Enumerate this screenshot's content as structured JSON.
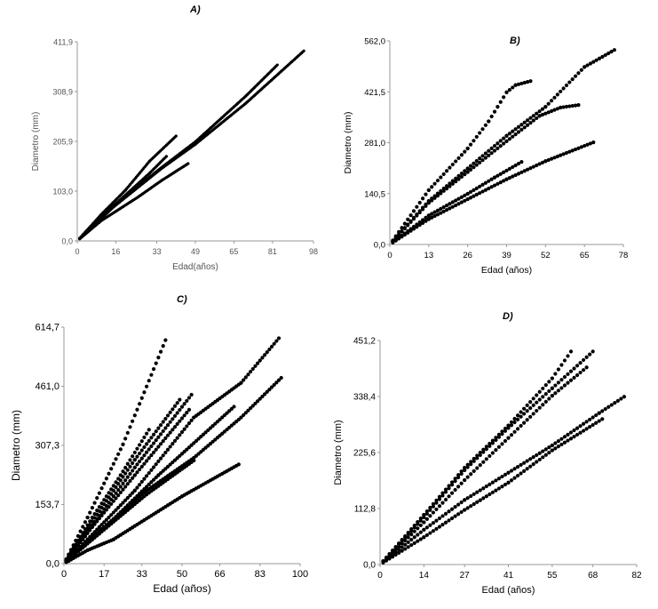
{
  "chart_data": [
    {
      "type": "scatter",
      "title": "A)",
      "xlabel": "Edad(años)",
      "ylabel": "Diametro (mm)",
      "xlim": [
        0,
        98
      ],
      "ylim": [
        0,
        411.9
      ],
      "xticks": [
        "0",
        "16",
        "33",
        "49",
        "65",
        "81",
        "98"
      ],
      "xtick_values": [
        0,
        16,
        33,
        49,
        65,
        81,
        98
      ],
      "yticks": [
        "0,0",
        "103,0",
        "205,9",
        "308,9",
        "411,9"
      ],
      "ytick_values": [
        0,
        103,
        205.9,
        308.9,
        411.9
      ],
      "grid": false,
      "color": "#000000",
      "series": [
        {
          "points": [
            [
              0,
              0
            ],
            [
              10,
              55
            ],
            [
              20,
              105
            ],
            [
              30,
              165
            ],
            [
              41,
              217
            ]
          ]
        },
        {
          "points": [
            [
              0,
              0
            ],
            [
              10,
              50
            ],
            [
              20,
              95
            ],
            [
              30,
              140
            ],
            [
              37,
              175
            ]
          ]
        },
        {
          "points": [
            [
              0,
              0
            ],
            [
              10,
              42
            ],
            [
              25,
              90
            ],
            [
              35,
              125
            ],
            [
              46,
              160
            ]
          ]
        },
        {
          "points": [
            [
              0,
              0
            ],
            [
              15,
              70
            ],
            [
              35,
              150
            ],
            [
              49,
              200
            ],
            [
              70,
              285
            ],
            [
              94,
              393
            ]
          ]
        },
        {
          "points": [
            [
              0,
              0
            ],
            [
              15,
              72
            ],
            [
              35,
              152
            ],
            [
              49,
              205
            ],
            [
              70,
              300
            ],
            [
              83,
              364
            ]
          ]
        }
      ]
    },
    {
      "type": "scatter",
      "title": "B)",
      "xlabel": "Edad (años)",
      "ylabel": "Diametro (mm)",
      "xlim": [
        0,
        78
      ],
      "ylim": [
        0,
        562.0
      ],
      "xticks": [
        "0",
        "13",
        "26",
        "39",
        "52",
        "65",
        "78"
      ],
      "xtick_values": [
        0,
        13,
        26,
        39,
        52,
        65,
        78
      ],
      "yticks": [
        "0,0",
        "140,5",
        "281,0",
        "421,5",
        "562,0"
      ],
      "ytick_values": [
        0,
        140.5,
        281,
        421.5,
        562
      ],
      "grid": false,
      "color": "#000000",
      "series": [
        {
          "points": [
            [
              0,
              0
            ],
            [
              13,
              150
            ],
            [
              26,
              265
            ],
            [
              33,
              340
            ],
            [
              39,
              420
            ],
            [
              42,
              440
            ],
            [
              47,
              451
            ]
          ]
        },
        {
          "points": [
            [
              0,
              0
            ],
            [
              13,
              120
            ],
            [
              26,
              210
            ],
            [
              39,
              300
            ],
            [
              52,
              380
            ],
            [
              65,
              490
            ],
            [
              75,
              537
            ]
          ]
        },
        {
          "points": [
            [
              0,
              0
            ],
            [
              13,
              115
            ],
            [
              26,
              200
            ],
            [
              39,
              285
            ],
            [
              50,
              355
            ],
            [
              57,
              378
            ],
            [
              63,
              385
            ]
          ]
        },
        {
          "points": [
            [
              0,
              0
            ],
            [
              13,
              80
            ],
            [
              26,
              140
            ],
            [
              35,
              185
            ],
            [
              44,
              228
            ]
          ]
        },
        {
          "points": [
            [
              0,
              0
            ],
            [
              13,
              70
            ],
            [
              26,
              125
            ],
            [
              39,
              180
            ],
            [
              52,
              230
            ],
            [
              68,
              282
            ]
          ]
        }
      ]
    },
    {
      "type": "scatter",
      "title": "C)",
      "xlabel": "Edad (años)",
      "ylabel": "Diametro (mm)",
      "xlim": [
        0,
        100
      ],
      "ylim": [
        0,
        614.7
      ],
      "xticks": [
        "0",
        "17",
        "33",
        "50",
        "66",
        "83",
        "100"
      ],
      "xtick_values": [
        0,
        17,
        33,
        50,
        66,
        83,
        100
      ],
      "yticks": [
        "0,0",
        "153,7",
        "307,3",
        "461,0",
        "614,7"
      ],
      "ytick_values": [
        0,
        153.7,
        307.3,
        461,
        614.7
      ],
      "grid": false,
      "color": "#000000",
      "series": [
        {
          "points": [
            [
              0,
              0
            ],
            [
              10,
              120
            ],
            [
              25,
              310
            ],
            [
              43,
              581
            ]
          ]
        },
        {
          "points": [
            [
              0,
              0
            ],
            [
              12,
              120
            ],
            [
              24,
              230
            ],
            [
              36,
              348
            ]
          ]
        },
        {
          "points": [
            [
              0,
              0
            ],
            [
              12,
              110
            ],
            [
              30,
              270
            ],
            [
              49,
              426
            ]
          ]
        },
        {
          "points": [
            [
              0,
              0
            ],
            [
              12,
              100
            ],
            [
              30,
              250
            ],
            [
              54,
              439
            ]
          ]
        },
        {
          "points": [
            [
              0,
              0
            ],
            [
              12,
              95
            ],
            [
              30,
              230
            ],
            [
              53,
              400
            ]
          ]
        },
        {
          "points": [
            [
              0,
              0
            ],
            [
              15,
              95
            ],
            [
              30,
              190
            ],
            [
              55,
              380
            ],
            [
              75,
              470
            ],
            [
              91,
              586
            ]
          ]
        },
        {
          "points": [
            [
              0,
              0
            ],
            [
              15,
              85
            ],
            [
              35,
              190
            ],
            [
              55,
              275
            ],
            [
              75,
              380
            ],
            [
              92,
              483
            ]
          ]
        },
        {
          "points": [
            [
              0,
              0
            ],
            [
              15,
              80
            ],
            [
              40,
              230
            ],
            [
              72,
              408
            ]
          ]
        },
        {
          "points": [
            [
              0,
              0
            ],
            [
              15,
              78
            ],
            [
              35,
              180
            ],
            [
              55,
              268
            ]
          ]
        },
        {
          "points": [
            [
              0,
              0
            ],
            [
              10,
              35
            ],
            [
              21,
              63
            ],
            [
              29,
              94
            ],
            [
              50,
              175
            ],
            [
              74,
              258
            ]
          ]
        }
      ]
    },
    {
      "type": "scatter",
      "title": "D)",
      "xlabel": "Edad (años)",
      "ylabel": "Diametro (mm)",
      "xlim": [
        0,
        82
      ],
      "ylim": [
        0,
        451.2
      ],
      "xticks": [
        "0",
        "14",
        "27",
        "41",
        "55",
        "68",
        "82"
      ],
      "xtick_values": [
        0,
        14,
        27,
        41,
        55,
        68,
        82
      ],
      "yticks": [
        "0,0",
        "112,8",
        "225,6",
        "338,4",
        "451,2"
      ],
      "ytick_values": [
        0,
        112.8,
        225.6,
        338.4,
        451.2
      ],
      "grid": false,
      "color": "#000000",
      "series": [
        {
          "points": [
            [
              0,
              0
            ],
            [
              14,
              100
            ],
            [
              27,
              195
            ],
            [
              41,
              280
            ],
            [
              55,
              375
            ],
            [
              61,
              429
            ]
          ]
        },
        {
          "points": [
            [
              0,
              0
            ],
            [
              14,
              95
            ],
            [
              27,
              190
            ],
            [
              41,
              275
            ],
            [
              55,
              355
            ],
            [
              68,
              429
            ]
          ]
        },
        {
          "points": [
            [
              0,
              0
            ],
            [
              14,
              85
            ],
            [
              27,
              170
            ],
            [
              41,
              255
            ],
            [
              55,
              340
            ],
            [
              66,
              397
            ]
          ]
        },
        {
          "points": [
            [
              0,
              0
            ],
            [
              14,
              70
            ],
            [
              27,
              130
            ],
            [
              41,
              185
            ],
            [
              55,
              240
            ],
            [
              70,
              305
            ],
            [
              78,
              338
            ]
          ]
        },
        {
          "points": [
            [
              0,
              0
            ],
            [
              14,
              55
            ],
            [
              27,
              110
            ],
            [
              41,
              165
            ],
            [
              55,
              230
            ],
            [
              71,
              293
            ]
          ]
        }
      ]
    }
  ]
}
